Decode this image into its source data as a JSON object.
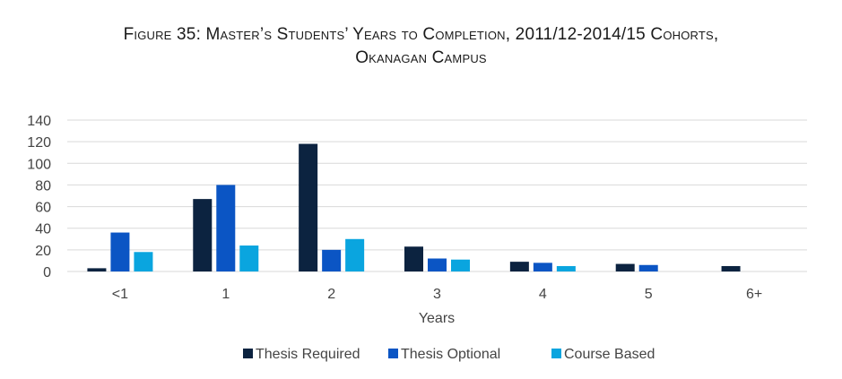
{
  "chart_data": {
    "type": "bar",
    "title_line1": "Figure 35: Master’s Students’ Years to Completion, 2011/12-2014/15 Cohorts,",
    "title_line2": "Okanagan Campus",
    "xlabel": "Years",
    "ylabel": "",
    "categories": [
      "<1",
      "1",
      "2",
      "3",
      "4",
      "5",
      "6+"
    ],
    "series": [
      {
        "name": "Thesis Required",
        "color": "#0c2340",
        "values": [
          3,
          67,
          118,
          23,
          9,
          7,
          5
        ]
      },
      {
        "name": "Thesis Optional",
        "color": "#0b55c4",
        "values": [
          36,
          80,
          20,
          12,
          8,
          6,
          0
        ]
      },
      {
        "name": "Course Based",
        "color": "#0aa5df",
        "values": [
          18,
          24,
          30,
          11,
          5,
          0,
          0
        ]
      }
    ],
    "ylim": [
      0,
      140
    ],
    "yticks": [
      0,
      20,
      40,
      60,
      80,
      100,
      120,
      140
    ],
    "grid": true,
    "gridColor": "#d9d9d9",
    "legend": "bottom"
  }
}
